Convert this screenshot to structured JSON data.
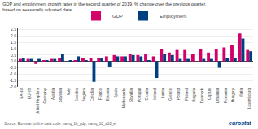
{
  "chart_data": {
    "type": "bar",
    "title": "GDP and employment growth rates in the second quarter of 2019, % change over the previous quarter,",
    "subtitle": "based on seasonally adjusted data",
    "categories": [
      "EA-19",
      "EU-28",
      "United Kingdom",
      "Germany",
      "Austria",
      "Slovenia",
      "Italy",
      "Sweden",
      "Belgium",
      "Czechia",
      "France",
      "Estonia",
      "Spain",
      "Netherlands",
      "Slovakia",
      "Portugal",
      "Croatia",
      "Ireland",
      "Latvia",
      "Greece",
      "Poland",
      "Finland",
      "Bulgaria",
      "Denmark",
      "Cyprus",
      "Lithuania",
      "Romania",
      "Hungary",
      "Malta",
      "Luxembourg"
    ],
    "series": [
      {
        "name": "GDP",
        "color": "#d4006a",
        "values": [
          0.2,
          0.2,
          -0.2,
          0.1,
          0.2,
          0.3,
          0.0,
          0.1,
          0.3,
          0.3,
          0.3,
          0.4,
          0.5,
          0.4,
          0.6,
          0.5,
          0.6,
          0.4,
          1.0,
          0.7,
          0.9,
          0.9,
          0.6,
          1.0,
          0.7,
          1.0,
          1.1,
          1.3,
          2.2,
          0.9
        ]
      },
      {
        "name": "Employment",
        "color": "#003f7f",
        "values": [
          0.3,
          0.2,
          0.2,
          0.1,
          0.2,
          0.6,
          0.1,
          0.4,
          0.1,
          -1.6,
          0.3,
          -0.4,
          0.4,
          0.4,
          0.5,
          0.4,
          0.1,
          -1.3,
          0.6,
          0.5,
          0.2,
          0.2,
          0.0,
          0.2,
          0.2,
          -0.5,
          0.3,
          0.3,
          1.8,
          0.8
        ]
      }
    ],
    "ylim": [
      -2.0,
      2.6
    ],
    "yticks": [
      {
        "value": -2.0,
        "label": "-2.0"
      },
      -1.5,
      {
        "value": -1.0,
        "label": "-1.0"
      },
      -0.5,
      {
        "value": 0.0,
        "label": "0.0"
      },
      0.5,
      {
        "value": 1.0,
        "label": "1.0"
      },
      1.5,
      {
        "value": 2.0,
        "label": "2.0"
      },
      2.5
    ],
    "grid": true,
    "legend": "top",
    "annotations": [
      "Source: Eurostat (online data code: namq_10_gdp, namq_10_a10_e)",
      "eurostat"
    ]
  }
}
